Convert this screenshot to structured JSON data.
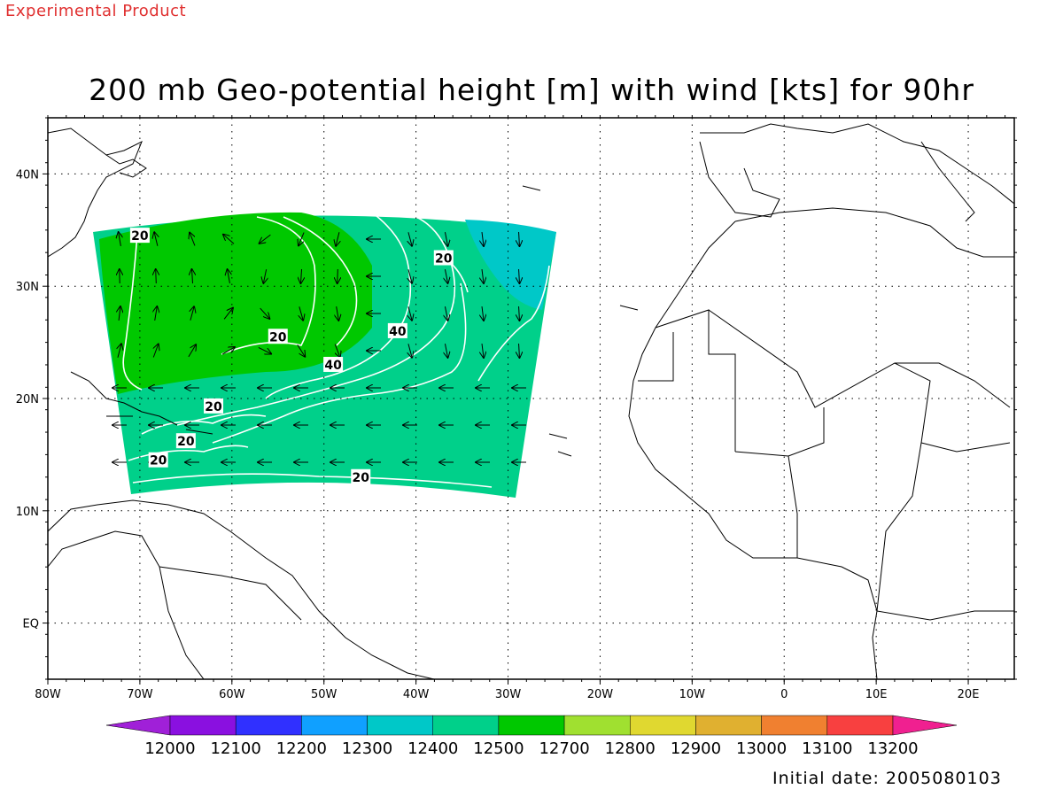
{
  "header": {
    "product_label": "Experimental Product",
    "title": "200 mb Geo-potential height [m] with wind [kts] for 90hr"
  },
  "footer": {
    "initial_date": "Initial date: 2005080103"
  },
  "map": {
    "lon_range": [
      -80,
      25
    ],
    "lat_range": [
      -5,
      45
    ],
    "lon_ticks": [
      {
        "value": -80,
        "label": "80W"
      },
      {
        "value": -70,
        "label": "70W"
      },
      {
        "value": -60,
        "label": "60W"
      },
      {
        "value": -50,
        "label": "50W"
      },
      {
        "value": -40,
        "label": "40W"
      },
      {
        "value": -30,
        "label": "30W"
      },
      {
        "value": -20,
        "label": "20W"
      },
      {
        "value": -10,
        "label": "10W"
      },
      {
        "value": 0,
        "label": "0"
      },
      {
        "value": 10,
        "label": "10E"
      },
      {
        "value": 20,
        "label": "20E"
      }
    ],
    "lat_ticks": [
      {
        "value": 0,
        "label": "EQ"
      },
      {
        "value": 10,
        "label": "10N"
      },
      {
        "value": 20,
        "label": "20N"
      },
      {
        "value": 30,
        "label": "30N"
      },
      {
        "value": 40,
        "label": "40N"
      }
    ],
    "grid": "dotted",
    "contour_labels": [
      {
        "value": "20",
        "lon": -70,
        "lat": 34.5
      },
      {
        "value": "20",
        "lon": -55,
        "lat": 25.5
      },
      {
        "value": "20",
        "lon": -37,
        "lat": 32.5
      },
      {
        "value": "40",
        "lon": -42,
        "lat": 26
      },
      {
        "value": "40",
        "lon": -49,
        "lat": 23
      },
      {
        "value": "20",
        "lon": -62,
        "lat": 19.3
      },
      {
        "value": "20",
        "lon": -65,
        "lat": 16.2
      },
      {
        "value": "20",
        "lon": -68,
        "lat": 14.5
      },
      {
        "value": "20",
        "lon": -46,
        "lat": 13
      }
    ],
    "colorbar": {
      "labels": [
        "12000",
        "12100",
        "12200",
        "12300",
        "12400",
        "12500",
        "12700",
        "12800",
        "12900",
        "13000",
        "13100",
        "13200"
      ],
      "colors": [
        "#a020d8",
        "#8a10e0",
        "#3030ff",
        "#10a0ff",
        "#00c8c8",
        "#00d08a",
        "#00c800",
        "#a0e030",
        "#e0d830",
        "#e0b030",
        "#f08030",
        "#f84040",
        "#f02090"
      ]
    },
    "fill_colors": {
      "green_band": "#00c800",
      "teal_band": "#00d08a",
      "cyan_band": "#00c8c8"
    }
  }
}
